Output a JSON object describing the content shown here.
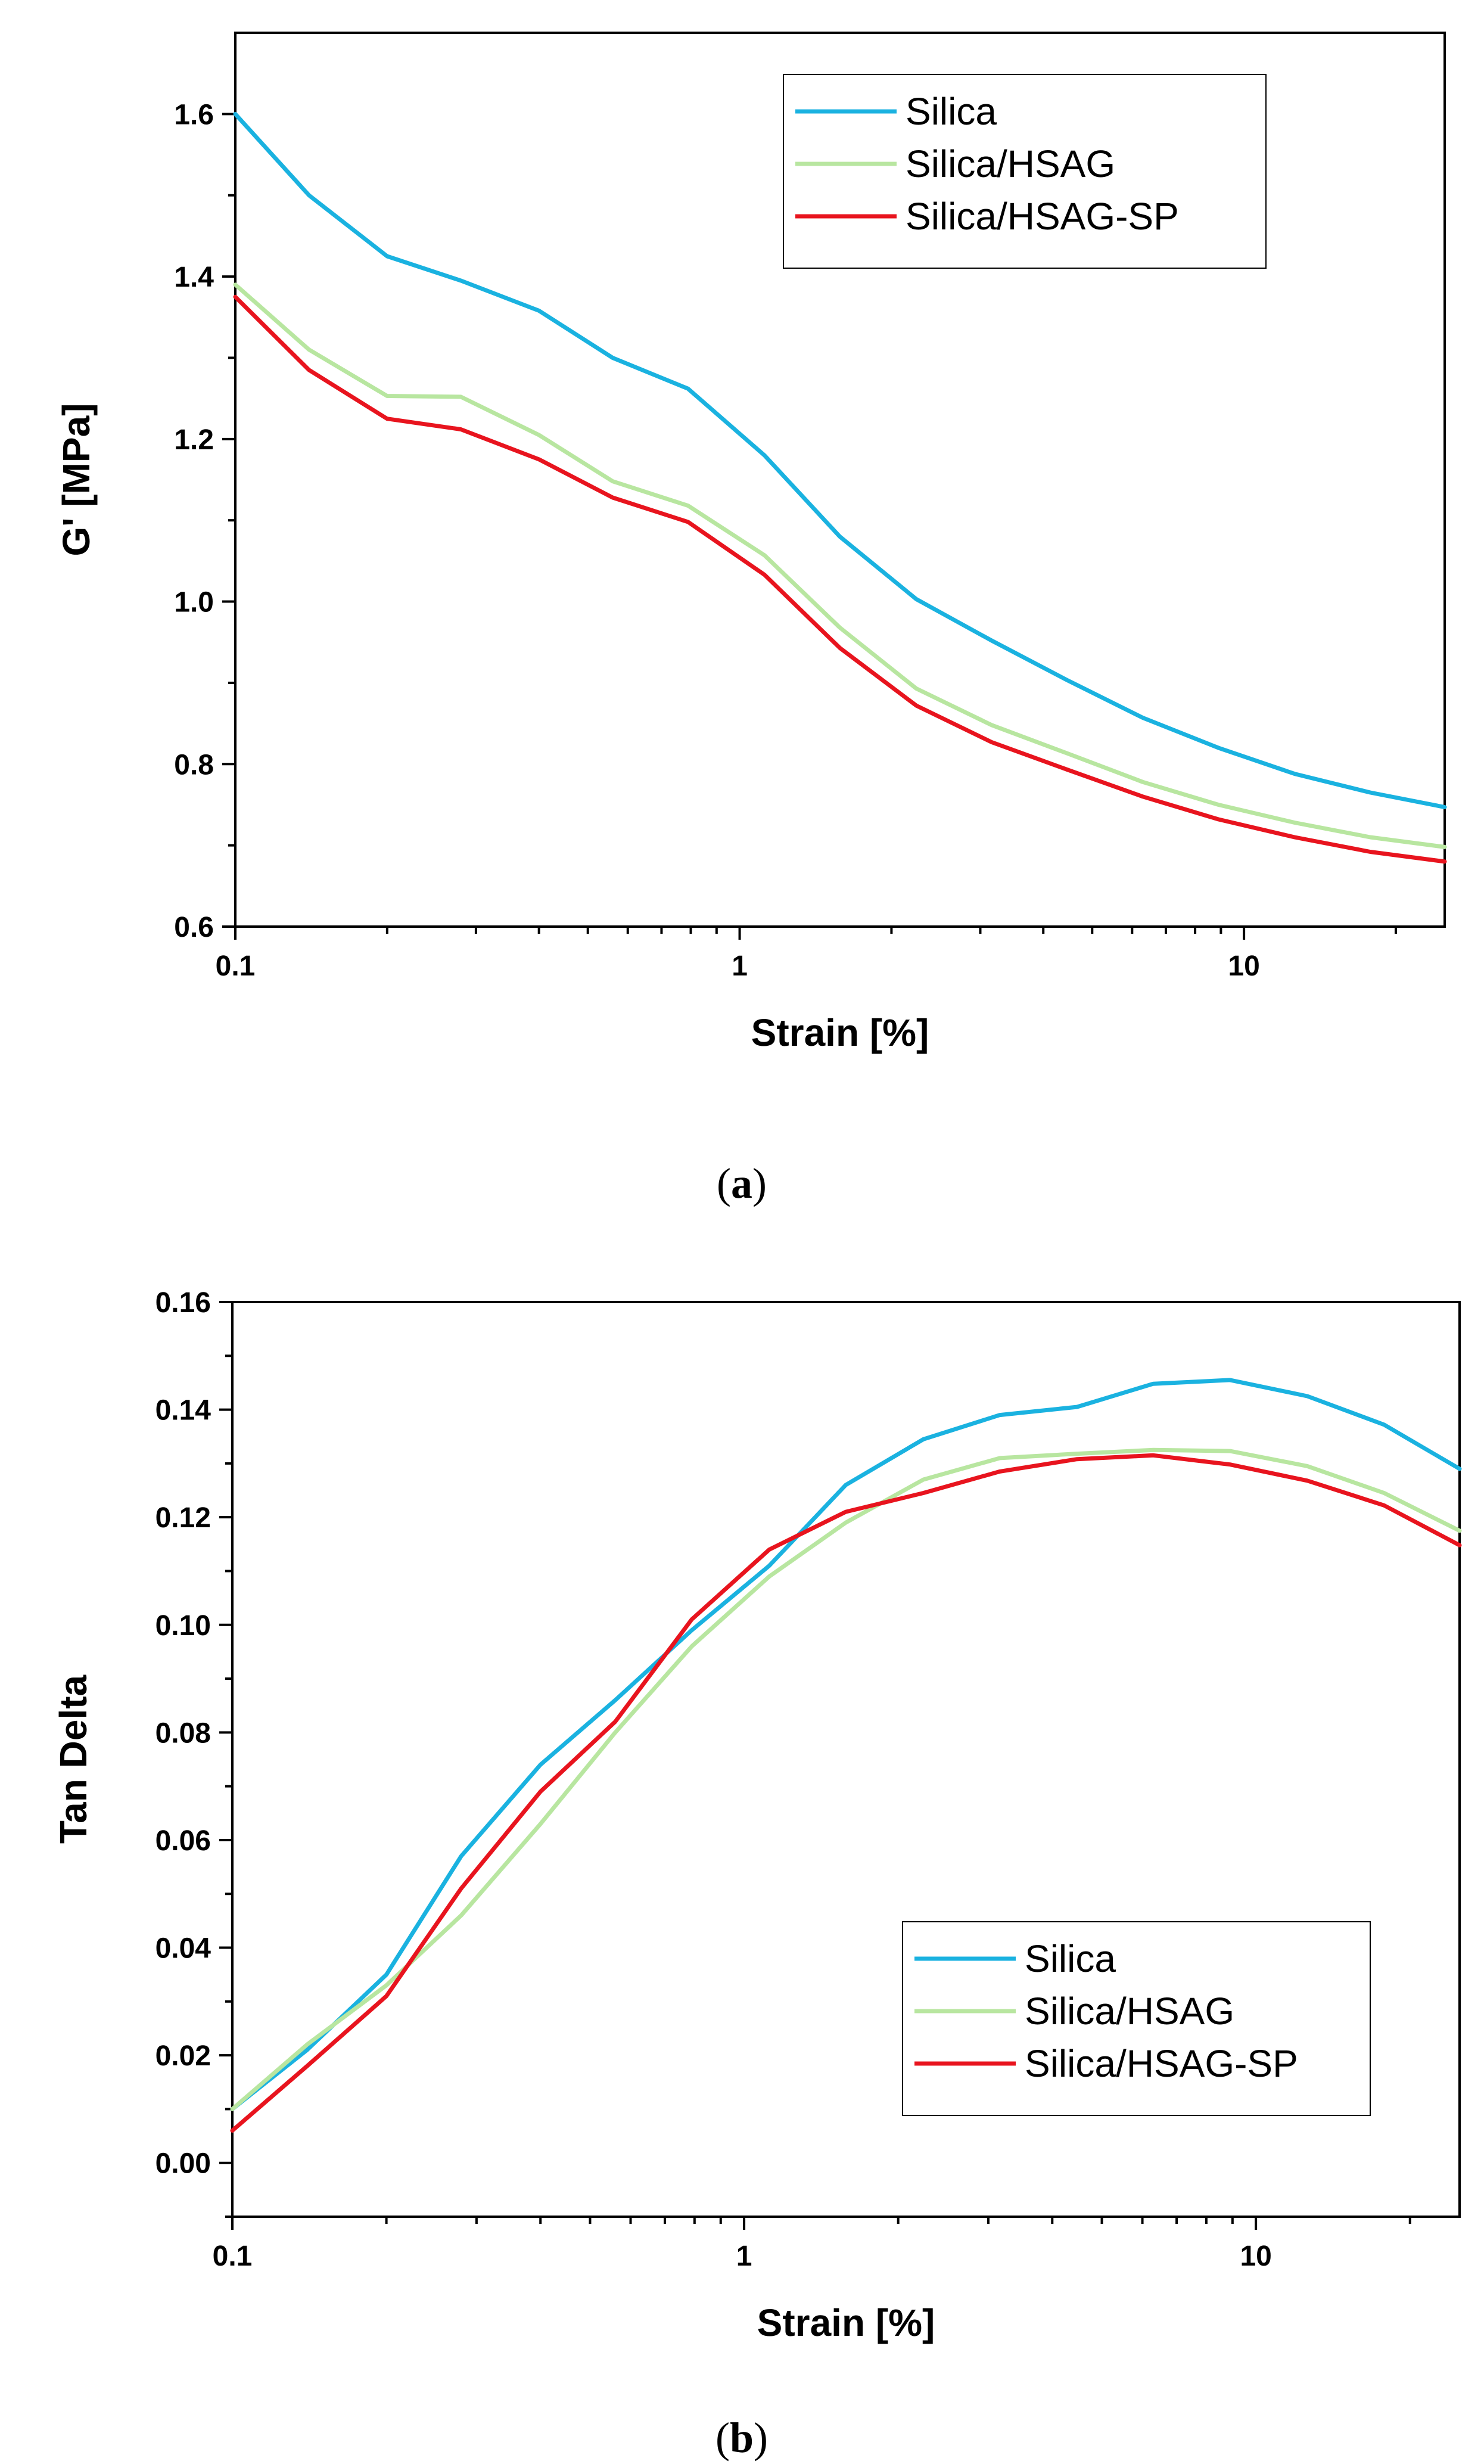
{
  "colors": {
    "silica": "#1ab2e0",
    "silica_hsag": "#b8e6a0",
    "silica_hsag_sp": "#e8141e",
    "axis": "#000000"
  },
  "chart_data": [
    {
      "type": "line",
      "panel_label": "a",
      "xlabel": "Strain [%]",
      "ylabel": "G' [MPa]",
      "xscale": "log",
      "xlim": [
        0.1,
        25
      ],
      "ylim": [
        0.6,
        1.7
      ],
      "xticks": [
        0.1,
        1,
        10
      ],
      "xtick_labels": [
        "0.1",
        "1",
        "10"
      ],
      "yticks": [
        0.6,
        0.8,
        1.0,
        1.2,
        1.4,
        1.6
      ],
      "ytick_labels": [
        "0.6",
        "0.8",
        "1.0",
        "1.2",
        "1.4",
        "1.6"
      ],
      "legend_position": "top-right",
      "x": [
        0.1,
        0.14,
        0.2,
        0.28,
        0.4,
        0.56,
        0.79,
        1.12,
        1.58,
        2.24,
        3.16,
        4.47,
        6.3,
        8.9,
        12.6,
        17.8,
        25
      ],
      "series": [
        {
          "name": "Silica",
          "color_key": "silica",
          "values": [
            1.6,
            1.5,
            1.425,
            1.395,
            1.358,
            1.3,
            1.262,
            1.18,
            1.08,
            1.003,
            0.952,
            0.903,
            0.857,
            0.82,
            0.788,
            0.765,
            0.747
          ]
        },
        {
          "name": "Silica/HSAG",
          "color_key": "silica_hsag",
          "values": [
            1.39,
            1.31,
            1.253,
            1.252,
            1.205,
            1.148,
            1.118,
            1.057,
            0.968,
            0.893,
            0.848,
            0.813,
            0.778,
            0.75,
            0.728,
            0.71,
            0.698
          ]
        },
        {
          "name": "Silica/HSAG-SP",
          "color_key": "silica_hsag_sp",
          "values": [
            1.375,
            1.285,
            1.225,
            1.212,
            1.175,
            1.128,
            1.098,
            1.033,
            0.943,
            0.872,
            0.827,
            0.793,
            0.76,
            0.732,
            0.71,
            0.692,
            0.68
          ]
        }
      ]
    },
    {
      "type": "line",
      "panel_label": "b",
      "xlabel": "Strain [%]",
      "ylabel": "Tan Delta",
      "xscale": "log",
      "xlim": [
        0.1,
        25
      ],
      "ylim": [
        -0.01,
        0.16
      ],
      "xticks": [
        0.1,
        1,
        10
      ],
      "xtick_labels": [
        "0.1",
        "1",
        "10"
      ],
      "yticks": [
        0.0,
        0.02,
        0.04,
        0.06,
        0.08,
        0.1,
        0.12,
        0.14,
        0.16
      ],
      "ytick_labels": [
        "0.00",
        "0.02",
        "0.04",
        "0.06",
        "0.08",
        "0.10",
        "0.12",
        "0.14",
        "0.16"
      ],
      "legend_position": "bottom-right",
      "x": [
        0.1,
        0.14,
        0.2,
        0.28,
        0.4,
        0.56,
        0.79,
        1.12,
        1.58,
        2.24,
        3.16,
        4.47,
        6.3,
        8.9,
        12.6,
        17.8,
        25
      ],
      "series": [
        {
          "name": "Silica",
          "color_key": "silica",
          "values": [
            0.01,
            0.021,
            0.035,
            0.057,
            0.074,
            0.086,
            0.099,
            0.111,
            0.126,
            0.1345,
            0.139,
            0.1405,
            0.1448,
            0.1455,
            0.1425,
            0.1372,
            0.129
          ]
        },
        {
          "name": "Silica/HSAG",
          "color_key": "silica_hsag",
          "values": [
            0.01,
            0.022,
            0.033,
            0.046,
            0.063,
            0.08,
            0.096,
            0.109,
            0.119,
            0.127,
            0.131,
            0.1318,
            0.1325,
            0.1323,
            0.1295,
            0.1245,
            0.1175
          ]
        },
        {
          "name": "Silica/HSAG-SP",
          "color_key": "silica_hsag_sp",
          "values": [
            0.006,
            0.018,
            0.031,
            0.051,
            0.069,
            0.082,
            0.101,
            0.114,
            0.121,
            0.1245,
            0.1285,
            0.1308,
            0.1315,
            0.1298,
            0.1268,
            0.1222,
            0.1148
          ]
        }
      ]
    }
  ]
}
